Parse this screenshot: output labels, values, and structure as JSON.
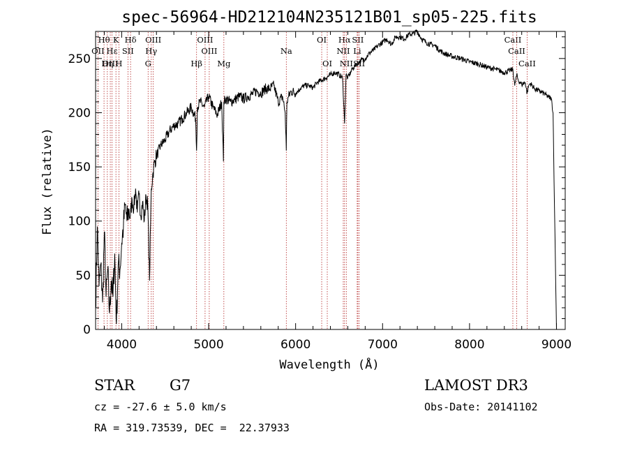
{
  "chart_data": {
    "type": "line",
    "title": "spec-56964-HD212104N235121B01_sp05-225.fits",
    "xlabel": "Wavelength (Å)",
    "ylabel": "Flux (relative)",
    "xlim": [
      3700,
      9100
    ],
    "ylim": [
      0,
      275
    ],
    "xticks": [
      4000,
      5000,
      6000,
      7000,
      8000,
      9000
    ],
    "yticks": [
      0,
      50,
      100,
      150,
      200,
      250
    ],
    "grid": false,
    "series": [
      {
        "name": "spectrum",
        "x": [
          3700,
          3720,
          3740,
          3760,
          3780,
          3800,
          3820,
          3840,
          3860,
          3880,
          3900,
          3920,
          3940,
          3960,
          3980,
          4000,
          4020,
          4040,
          4060,
          4080,
          4100,
          4120,
          4140,
          4160,
          4180,
          4200,
          4220,
          4240,
          4260,
          4280,
          4300,
          4320,
          4340,
          4360,
          4380,
          4400,
          4450,
          4500,
          4550,
          4600,
          4650,
          4700,
          4750,
          4800,
          4850,
          4861,
          4870,
          4900,
          4950,
          5000,
          5050,
          5100,
          5150,
          5170,
          5175,
          5200,
          5250,
          5300,
          5350,
          5400,
          5450,
          5500,
          5550,
          5600,
          5650,
          5700,
          5750,
          5800,
          5850,
          5880,
          5893,
          5900,
          5920,
          5950,
          6000,
          6050,
          6100,
          6150,
          6200,
          6250,
          6300,
          6350,
          6400,
          6450,
          6500,
          6540,
          6563,
          6580,
          6600,
          6650,
          6700,
          6750,
          6800,
          6850,
          6900,
          6950,
          7000,
          7050,
          7100,
          7150,
          7200,
          7250,
          7300,
          7350,
          7400,
          7450,
          7500,
          7550,
          7600,
          7650,
          7700,
          7800,
          7900,
          8000,
          8100,
          8200,
          8300,
          8400,
          8498,
          8520,
          8542,
          8560,
          8600,
          8640,
          8662,
          8680,
          8700,
          8750,
          8800,
          8850,
          8900,
          8940,
          8960,
          8980,
          9000
        ],
        "y": [
          20,
          95,
          40,
          60,
          25,
          90,
          30,
          55,
          15,
          45,
          30,
          70,
          5,
          60,
          55,
          80,
          95,
          115,
          100,
          110,
          105,
          120,
          112,
          130,
          108,
          125,
          105,
          118,
          100,
          123,
          115,
          45,
          130,
          145,
          155,
          160,
          170,
          175,
          183,
          188,
          190,
          195,
          200,
          205,
          195,
          165,
          205,
          210,
          205,
          215,
          205,
          198,
          210,
          155,
          210,
          213,
          210,
          212,
          215,
          213,
          215,
          217,
          220,
          218,
          222,
          222,
          225,
          210,
          215,
          200,
          165,
          210,
          215,
          220,
          218,
          222,
          225,
          225,
          223,
          228,
          230,
          232,
          235,
          237,
          235,
          232,
          190,
          235,
          232,
          240,
          245,
          248,
          250,
          255,
          258,
          262,
          265,
          268,
          263,
          270,
          270,
          268,
          272,
          273,
          275,
          268,
          265,
          263,
          262,
          258,
          255,
          252,
          250,
          247,
          245,
          242,
          240,
          237,
          240,
          225,
          235,
          230,
          226,
          228,
          218,
          225,
          227,
          222,
          220,
          218,
          215,
          213,
          200,
          100,
          0
        ]
      }
    ],
    "lines": [
      {
        "label": "Hθ",
        "x": 3797,
        "row": 1
      },
      {
        "label": "OII",
        "x": 3727,
        "row": 2
      },
      {
        "label": "OIII",
        "x": 3869,
        "row": 3
      },
      {
        "label": "K",
        "x": 3934,
        "row": 1
      },
      {
        "label": "Hε",
        "x": 3889,
        "row": 2
      },
      {
        "label": "Hη",
        "x": 3835,
        "row": 3
      },
      {
        "label": "SII",
        "x": 4072,
        "row": 2
      },
      {
        "label": "H",
        "x": 3968,
        "row": 3
      },
      {
        "label": "Hδ",
        "x": 4102,
        "row": 1
      },
      {
        "label": "OIII",
        "x": 4363,
        "row": 1
      },
      {
        "label": "Hγ",
        "x": 4340,
        "row": 2
      },
      {
        "label": "G",
        "x": 4304,
        "row": 3
      },
      {
        "label": "Hβ",
        "x": 4861,
        "row": 3
      },
      {
        "label": "OIII",
        "x": 4959,
        "row": 1
      },
      {
        "label": "OIII",
        "x": 5007,
        "row": 2
      },
      {
        "label": "Mg",
        "x": 5175,
        "row": 3
      },
      {
        "label": "Na",
        "x": 5893,
        "row": 2
      },
      {
        "label": "OI",
        "x": 6300,
        "row": 1
      },
      {
        "label": "OI",
        "x": 6364,
        "row": 3
      },
      {
        "label": "Hα",
        "x": 6563,
        "row": 1
      },
      {
        "label": "NII",
        "x": 6548,
        "row": 2
      },
      {
        "label": "NII",
        "x": 6583,
        "row": 3
      },
      {
        "label": "SII",
        "x": 6716,
        "row": 1
      },
      {
        "label": "Li",
        "x": 6708,
        "row": 2
      },
      {
        "label": "SII",
        "x": 6731,
        "row": 3
      },
      {
        "label": "CaII",
        "x": 8498,
        "row": 1
      },
      {
        "label": "CaII",
        "x": 8542,
        "row": 2
      },
      {
        "label": "CaII",
        "x": 8662,
        "row": 3
      }
    ]
  },
  "info": {
    "object_type": "STAR",
    "subclass": "G7",
    "survey": "LAMOST DR3",
    "cz": "cz = -27.6 ± 5.0 km/s",
    "obs_date": "Obs-Date: 20141102",
    "coords": "RA = 319.73539, DEC =  22.37933"
  }
}
